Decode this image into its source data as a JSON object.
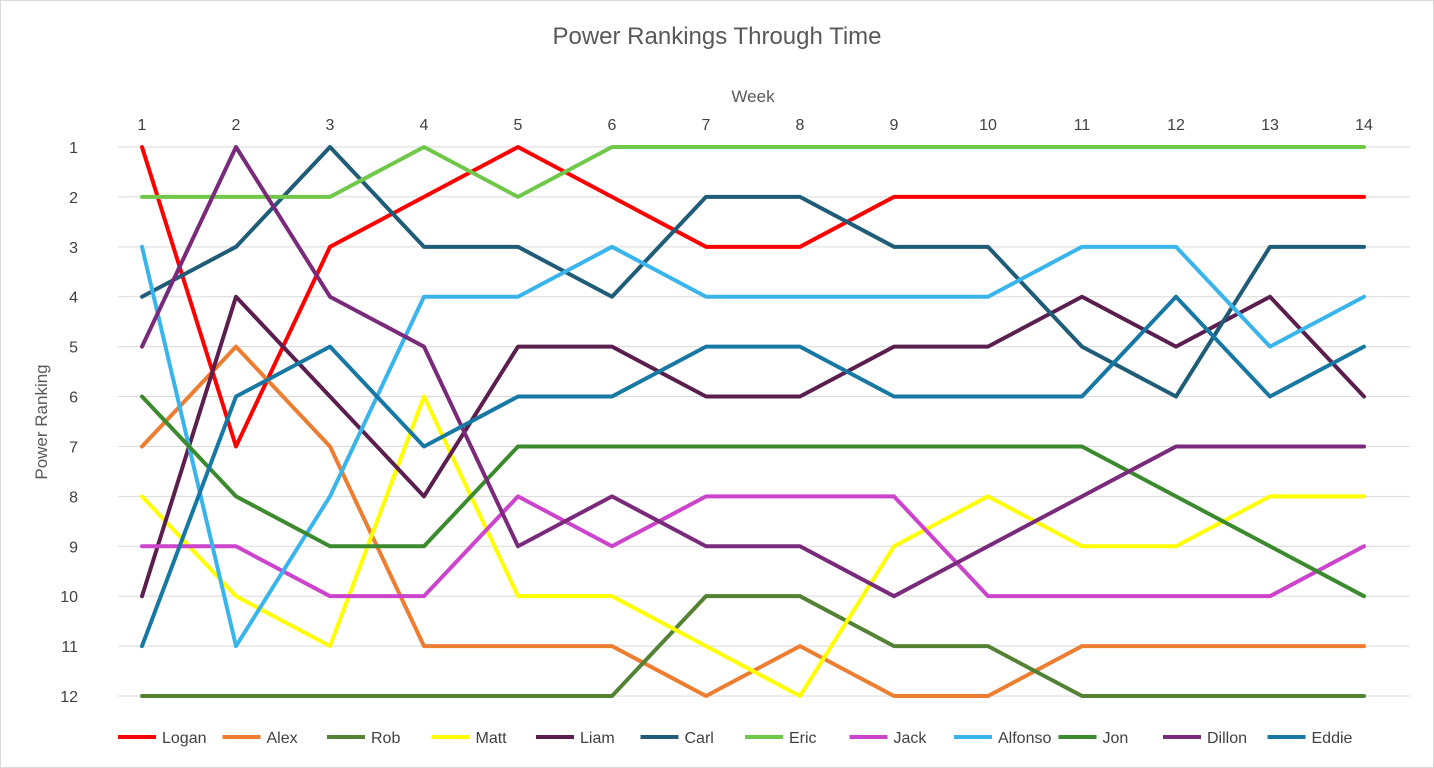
{
  "chart_data": {
    "type": "line",
    "title": "Power Rankings Through Time",
    "xlabel": "Week",
    "ylabel": "Power Ranking",
    "x": [
      1,
      2,
      3,
      4,
      5,
      6,
      7,
      8,
      9,
      10,
      11,
      12,
      13,
      14
    ],
    "x_tick_labels": [
      "1",
      "2",
      "3",
      "4",
      "5",
      "6",
      "7",
      "8",
      "9",
      "10",
      "11",
      "12",
      "13",
      "14"
    ],
    "y_tick_labels": [
      "1",
      "2",
      "3",
      "4",
      "5",
      "6",
      "7",
      "8",
      "9",
      "10",
      "11",
      "12"
    ],
    "ylim": [
      1,
      12
    ],
    "y_inverted": true,
    "x_axis_position": "top",
    "grid": true,
    "legend_position": "bottom",
    "series": [
      {
        "name": "Logan",
        "color": "#ff0000",
        "values": [
          1,
          7,
          3,
          2,
          1,
          2,
          3,
          3,
          2,
          2,
          2,
          2,
          2,
          2
        ]
      },
      {
        "name": "Alex",
        "color": "#ed7d31",
        "values": [
          7,
          5,
          7,
          11,
          11,
          11,
          12,
          11,
          12,
          12,
          11,
          11,
          11,
          11
        ]
      },
      {
        "name": "Rob",
        "color": "#548235",
        "values": [
          12,
          12,
          12,
          12,
          12,
          12,
          10,
          10,
          11,
          11,
          12,
          12,
          12,
          12
        ]
      },
      {
        "name": "Matt",
        "color": "#ffff00",
        "values": [
          8,
          10,
          11,
          6,
          10,
          10,
          11,
          12,
          9,
          8,
          9,
          9,
          8,
          8
        ]
      },
      {
        "name": "Liam",
        "color": "#5b1f4f",
        "values": [
          10,
          4,
          6,
          8,
          5,
          5,
          6,
          6,
          5,
          5,
          4,
          5,
          4,
          6
        ]
      },
      {
        "name": "Carl",
        "color": "#1f5c78",
        "values": [
          4,
          3,
          1,
          3,
          3,
          4,
          2,
          2,
          3,
          3,
          5,
          6,
          3,
          3
        ]
      },
      {
        "name": "Eric",
        "color": "#70c84a",
        "values": [
          2,
          2,
          2,
          1,
          2,
          1,
          1,
          1,
          1,
          1,
          1,
          1,
          1,
          1
        ]
      },
      {
        "name": "Jack",
        "color": "#cc44cc",
        "values": [
          9,
          9,
          10,
          10,
          8,
          9,
          8,
          8,
          8,
          10,
          10,
          10,
          10,
          9
        ]
      },
      {
        "name": "Alfonso",
        "color": "#3ab5ec",
        "values": [
          3,
          11,
          8,
          4,
          4,
          3,
          4,
          4,
          4,
          4,
          3,
          3,
          5,
          4
        ]
      },
      {
        "name": "Jon",
        "color": "#3c8a2e",
        "values": [
          6,
          8,
          9,
          9,
          7,
          7,
          7,
          7,
          7,
          7,
          7,
          8,
          9,
          10
        ]
      },
      {
        "name": "Dillon",
        "color": "#7a2a7a",
        "values": [
          5,
          1,
          4,
          5,
          9,
          8,
          9,
          9,
          10,
          9,
          8,
          7,
          7,
          7
        ]
      },
      {
        "name": "Eddie",
        "color": "#1878a4",
        "values": [
          11,
          6,
          5,
          7,
          6,
          6,
          5,
          5,
          6,
          6,
          6,
          4,
          6,
          5
        ]
      }
    ]
  }
}
